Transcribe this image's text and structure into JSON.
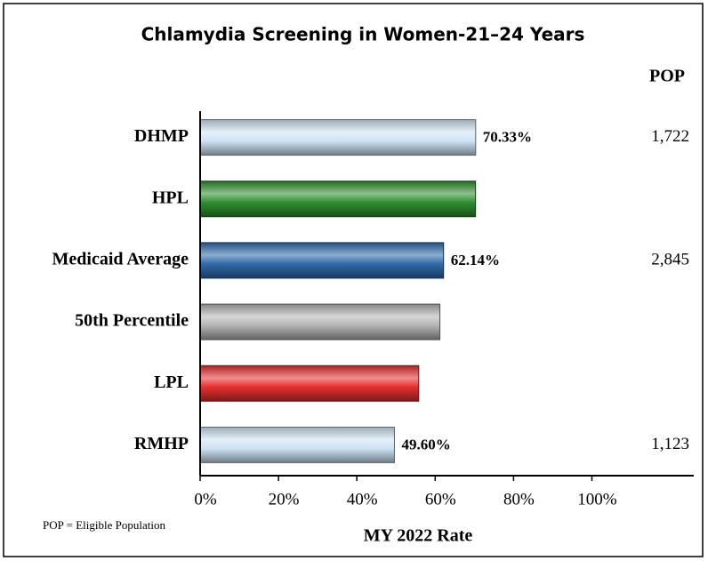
{
  "chart_data": {
    "type": "bar",
    "orientation": "horizontal",
    "title": "Chlamydia Screening in Women-21–24 Years",
    "categories": [
      "DHMP",
      "HPL",
      "Medicaid Average",
      "50th Percentile",
      "LPL",
      "RMHP"
    ],
    "values": [
      70.33,
      70.3,
      62.14,
      61.2,
      55.8,
      49.6
    ],
    "value_labels": [
      "70.33%",
      null,
      "62.14%",
      null,
      null,
      "49.60%"
    ],
    "colors": [
      "#cde3f4",
      "#2f8f2f",
      "#2f6aaa",
      "#b4b4b4",
      "#e53030",
      "#cde3f4"
    ],
    "xlim": [
      0,
      126
    ],
    "xticks": [
      {
        "value": 0,
        "label": "0%"
      },
      {
        "value": 20,
        "label": "20%"
      },
      {
        "value": 40,
        "label": "40%"
      },
      {
        "value": 60,
        "label": "60%"
      },
      {
        "value": 80,
        "label": "80%"
      },
      {
        "value": 100,
        "label": "100%"
      }
    ],
    "xlabel": "MY 2022 Rate",
    "pop": {
      "header": "POP",
      "values": [
        1722,
        null,
        2845,
        null,
        null,
        1123
      ],
      "value_labels": [
        "1,722",
        null,
        "2,845",
        null,
        null,
        "1,123"
      ]
    },
    "footnote": "POP = Eligible Population"
  }
}
